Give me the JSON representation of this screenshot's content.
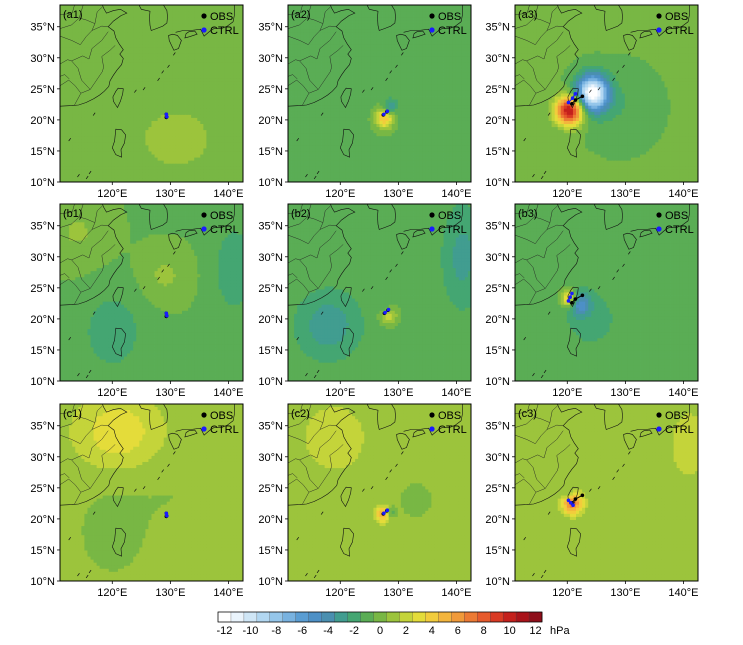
{
  "chart_data": {
    "type": "heatmap",
    "rows": 3,
    "cols": 3,
    "x_ticks": [
      "120°E",
      "130°E",
      "140°E"
    ],
    "x_tick_values": [
      120,
      130,
      140
    ],
    "y_ticks": [
      "35°N",
      "30°N",
      "25°N",
      "20°N",
      "15°N",
      "10°N"
    ],
    "y_tick_values": [
      35,
      30,
      25,
      20,
      15,
      10
    ],
    "xlim": [
      111,
      142.5
    ],
    "ylim": [
      10,
      38.5
    ],
    "legend_labels": {
      "obs": "OBS",
      "ctrl": "CTRL"
    },
    "legend_colors": {
      "obs": "#000000",
      "ctrl": "#1a1aff"
    },
    "panels": [
      {
        "label": "(a1)",
        "background": 0.1,
        "blobs": [
          {
            "lon": 131,
            "lat": 17,
            "amp": 0.7,
            "sx": 5,
            "sy": 4
          },
          {
            "lon": 126,
            "lat": 31,
            "amp": -0.6,
            "sx": 6,
            "sy": 4
          }
        ],
        "obs_track": [
          [
            129.3,
            20.4
          ],
          [
            129.3,
            20.9
          ]
        ],
        "ctrl_track": [
          [
            129.4,
            20.5
          ],
          [
            129.3,
            20.9
          ]
        ]
      },
      {
        "label": "(a2)",
        "background": -0.7,
        "blobs": [
          {
            "lon": 127.6,
            "lat": 20.3,
            "amp": 5.5,
            "sx": 1.1,
            "sy": 1.2
          },
          {
            "lon": 128.5,
            "lat": 22.0,
            "amp": -3.5,
            "sx": 0.8,
            "sy": 0.8
          },
          {
            "lon": 131,
            "lat": 29,
            "amp": -0.7,
            "sx": 5,
            "sy": 5
          }
        ],
        "obs_track": [
          [
            127.4,
            20.8
          ],
          [
            128.0,
            21.3
          ]
        ],
        "ctrl_track": [
          [
            127.5,
            20.9
          ],
          [
            128.1,
            21.4
          ]
        ]
      },
      {
        "label": "(a3)",
        "background": -0.4,
        "blobs": [
          {
            "lon": 120.4,
            "lat": 21.5,
            "amp": 11.5,
            "sx": 1.7,
            "sy": 1.6
          },
          {
            "lon": 124.3,
            "lat": 24.3,
            "amp": -12,
            "sx": 1.9,
            "sy": 2.0
          },
          {
            "lon": 129,
            "lat": 22,
            "amp": -1.0,
            "sx": 4,
            "sy": 4
          }
        ],
        "obs_track": [
          [
            120.8,
            22.6
          ],
          [
            121.4,
            23.2
          ],
          [
            122.6,
            23.8
          ]
        ],
        "ctrl_track": [
          [
            120.2,
            22.8
          ],
          [
            120.9,
            23.5
          ],
          [
            121.4,
            24.2
          ]
        ]
      },
      {
        "label": "(b1)",
        "background": -0.6,
        "blobs": [
          {
            "lon": 129,
            "lat": 27,
            "amp": 1.3,
            "sx": 3,
            "sy": 3
          },
          {
            "lon": 120,
            "lat": 18,
            "amp": -1.5,
            "sx": 4,
            "sy": 5
          },
          {
            "lon": 141,
            "lat": 28,
            "amp": -1.8,
            "sx": 2.5,
            "sy": 5
          },
          {
            "lon": 114,
            "lat": 34,
            "amp": 1.2,
            "sx": 4,
            "sy": 4
          }
        ],
        "obs_track": [
          [
            129.3,
            20.4
          ],
          [
            129.3,
            20.9
          ]
        ],
        "ctrl_track": [
          [
            129.4,
            20.5
          ],
          [
            129.3,
            20.9
          ]
        ]
      },
      {
        "label": "(b2)",
        "background": -0.7,
        "blobs": [
          {
            "lon": 128.3,
            "lat": 20.6,
            "amp": 3.2,
            "sx": 1.0,
            "sy": 1.0
          },
          {
            "lon": 127.8,
            "lat": 21.6,
            "amp": -1.8,
            "sx": 0.7,
            "sy": 0.7
          },
          {
            "lon": 118,
            "lat": 19,
            "amp": -2.5,
            "sx": 4,
            "sy": 4
          },
          {
            "lon": 141,
            "lat": 30,
            "amp": -2.2,
            "sx": 2.5,
            "sy": 6
          }
        ],
        "obs_track": [
          [
            127.6,
            20.9
          ],
          [
            128.2,
            21.4
          ]
        ],
        "ctrl_track": [
          [
            127.7,
            21.0
          ],
          [
            128.3,
            21.5
          ]
        ]
      },
      {
        "label": "(b3)",
        "background": -0.7,
        "blobs": [
          {
            "lon": 120.2,
            "lat": 23.3,
            "amp": 5.5,
            "sx": 0.9,
            "sy": 1.0
          },
          {
            "lon": 122.2,
            "lat": 22.3,
            "amp": -3.8,
            "sx": 1.3,
            "sy": 1.3
          },
          {
            "lon": 124,
            "lat": 20,
            "amp": -1.2,
            "sx": 4,
            "sy": 4
          }
        ],
        "obs_track": [
          [
            120.8,
            22.6
          ],
          [
            121.4,
            23.2
          ],
          [
            122.6,
            23.8
          ]
        ],
        "ctrl_track": [
          [
            120.2,
            22.9
          ],
          [
            120.5,
            23.5
          ],
          [
            120.8,
            24.1
          ]
        ]
      },
      {
        "label": "(c1)",
        "background": 0.9,
        "blobs": [
          {
            "lon": 121,
            "lat": 34,
            "amp": 2.4,
            "sx": 5,
            "sy": 4
          },
          {
            "lon": 120,
            "lat": 18,
            "amp": -0.9,
            "sx": 4,
            "sy": 5
          },
          {
            "lon": 130,
            "lat": 24,
            "amp": -0.4,
            "sx": 5,
            "sy": 4
          }
        ],
        "obs_track": [
          [
            129.3,
            20.4
          ],
          [
            129.3,
            20.9
          ]
        ],
        "ctrl_track": [
          [
            129.4,
            20.5
          ],
          [
            129.3,
            20.9
          ]
        ]
      },
      {
        "label": "(c2)",
        "background": 0.9,
        "blobs": [
          {
            "lon": 127.4,
            "lat": 20.8,
            "amp": 4.8,
            "sx": 0.9,
            "sy": 0.9
          },
          {
            "lon": 128.6,
            "lat": 21.0,
            "amp": -2.8,
            "sx": 0.6,
            "sy": 0.6
          },
          {
            "lon": 119,
            "lat": 33,
            "amp": 1.3,
            "sx": 4,
            "sy": 4
          },
          {
            "lon": 133,
            "lat": 23,
            "amp": -0.5,
            "sx": 4,
            "sy": 4
          }
        ],
        "obs_track": [
          [
            127.4,
            20.8
          ],
          [
            128.0,
            21.3
          ]
        ],
        "ctrl_track": [
          [
            127.5,
            20.9
          ],
          [
            128.1,
            21.4
          ]
        ]
      },
      {
        "label": "(c3)",
        "background": 0.5,
        "blobs": [
          {
            "lon": 120.9,
            "lat": 22.5,
            "amp": 6.5,
            "sx": 1.3,
            "sy": 1.3
          },
          {
            "lon": 120.2,
            "lat": 24.0,
            "amp": -2.4,
            "sx": 0.6,
            "sy": 0.6
          },
          {
            "lon": 141,
            "lat": 32,
            "amp": 1.6,
            "sx": 3,
            "sy": 5
          }
        ],
        "obs_track": [
          [
            120.8,
            22.6
          ],
          [
            121.4,
            23.2
          ],
          [
            122.6,
            23.8
          ]
        ],
        "ctrl_track": [
          [
            120.2,
            23.0
          ],
          [
            120.6,
            22.6
          ],
          [
            121.0,
            22.2
          ]
        ]
      }
    ],
    "colorbar": {
      "ticks": [
        "-12",
        "-10",
        "-8",
        "-6",
        "-4",
        "-2",
        "0",
        "2",
        "4",
        "6",
        "8",
        "10",
        "12"
      ],
      "tick_values": [
        -12,
        -10,
        -8,
        -6,
        -4,
        -2,
        0,
        2,
        4,
        6,
        8,
        10,
        12
      ],
      "unit": "hPa",
      "levels": [
        -12,
        -11,
        -10,
        -9,
        -8,
        -7,
        -6,
        -5,
        -4,
        -3,
        -2,
        -1,
        0,
        1,
        2,
        3,
        4,
        5,
        6,
        7,
        8,
        9,
        10,
        11,
        12
      ],
      "colors": [
        "#ffffff",
        "#eaf4fc",
        "#cfe6f6",
        "#b2d7f1",
        "#95c6ea",
        "#78b2e0",
        "#5a9dd3",
        "#4d90c6",
        "#4a8fb0",
        "#419d90",
        "#44a672",
        "#5aad55",
        "#78b744",
        "#9cc43c",
        "#c4d43a",
        "#e4dc3a",
        "#f2cc3c",
        "#f3b53d",
        "#f09a3a",
        "#ec7a34",
        "#e65a2c",
        "#d93a24",
        "#c4201c",
        "#a9131a",
        "#8e0e1a"
      ]
    }
  }
}
